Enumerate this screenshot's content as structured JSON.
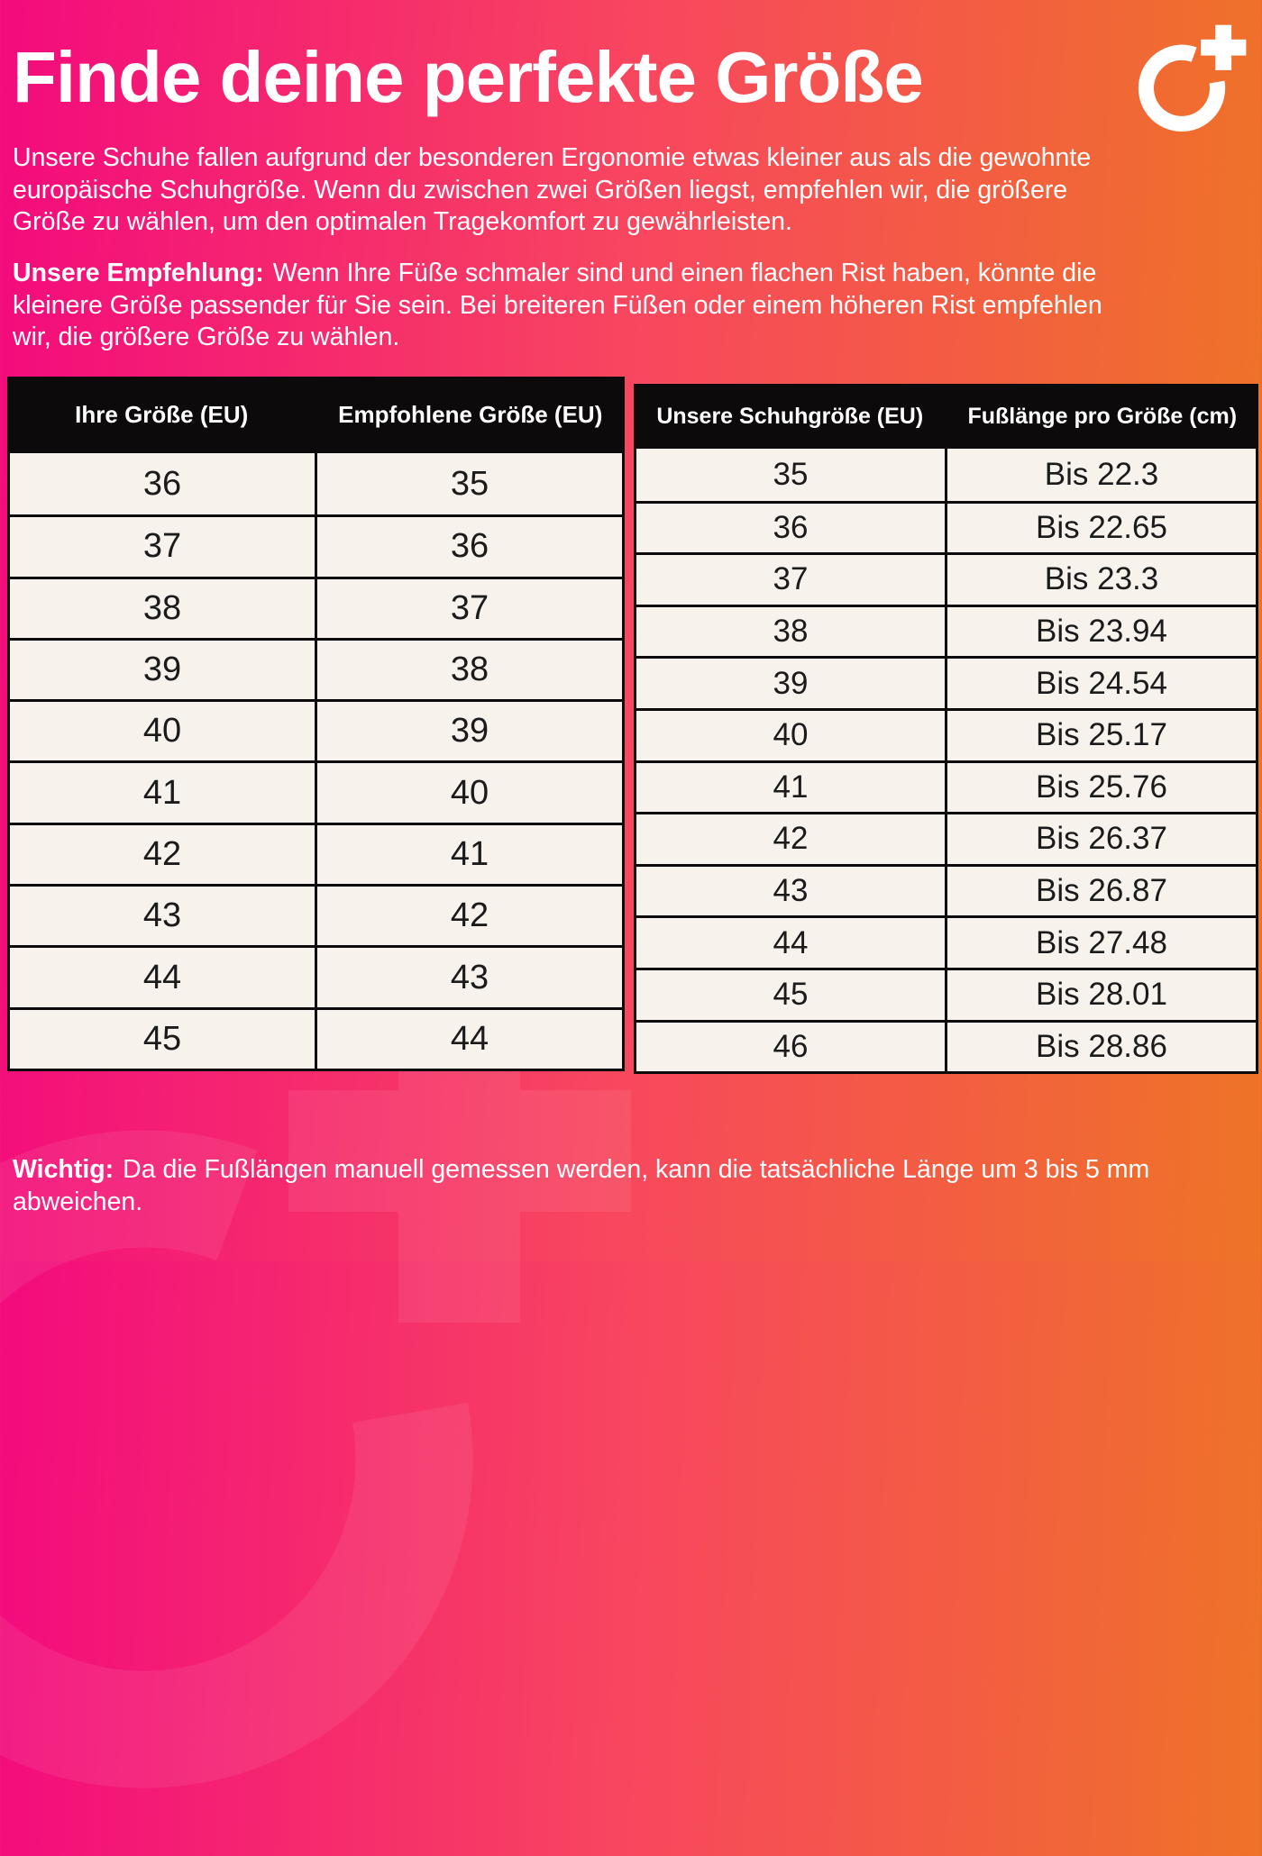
{
  "header": {
    "title": "Finde deine perfekte Größe"
  },
  "icons": {
    "logo": "circle-plus-logo-icon",
    "watermark": "circle-plus-watermark-icon"
  },
  "intro": {
    "lines": [
      "Unsere Schuhe fallen aufgrund der besonderen Ergonomie etwas kleiner aus als die gewohnte",
      "europäische Schuhgröße. Wenn du zwischen zwei Größen liegst, empfehlen wir, die größere",
      "Größe zu wählen, um den optimalen Tragekomfort zu gewährleisten."
    ]
  },
  "recommendation": {
    "label": "Unsere Empfehlung:",
    "lines": [
      "Wenn Ihre Füße schmaler sind und einen flachen Rist haben, könnte die",
      "kleinere Größe passender für Sie sein. Bei breiteren Füßen oder einem höheren Rist empfehlen",
      "wir, die größere Größe zu wählen."
    ]
  },
  "size_table": {
    "headers": [
      "Ihre Größe (EU)",
      "Empfohlene Größe (EU)"
    ],
    "rows": [
      [
        "36",
        "35"
      ],
      [
        "37",
        "36"
      ],
      [
        "38",
        "37"
      ],
      [
        "39",
        "38"
      ],
      [
        "40",
        "39"
      ],
      [
        "41",
        "40"
      ],
      [
        "42",
        "41"
      ],
      [
        "43",
        "42"
      ],
      [
        "44",
        "43"
      ],
      [
        "45",
        "44"
      ]
    ]
  },
  "foot_length_table": {
    "headers": [
      "Unsere Schuhgröße (EU)",
      "Fußlänge pro Größe (cm)"
    ],
    "rows": [
      [
        "35",
        "Bis 22.3"
      ],
      [
        "36",
        "Bis 22.65"
      ],
      [
        "37",
        "Bis 23.3"
      ],
      [
        "38",
        "Bis 23.94"
      ],
      [
        "39",
        "Bis 24.54"
      ],
      [
        "40",
        "Bis 25.17"
      ],
      [
        "41",
        "Bis 25.76"
      ],
      [
        "42",
        "Bis 26.37"
      ],
      [
        "43",
        "Bis 26.87"
      ],
      [
        "44",
        "Bis 27.48"
      ],
      [
        "45",
        "Bis 28.01"
      ],
      [
        "46",
        "Bis 28.86"
      ]
    ]
  },
  "note": {
    "label": "Wichtig:",
    "lines": [
      "Da die Fußlängen manuell gemessen werden, kann die tatsächliche Länge um 3 bis 5 mm",
      "abweichen."
    ]
  },
  "colors": {
    "gradient_left": "#f30b7d",
    "gradient_mid": "#f8465f",
    "gradient_right": "#ee7426",
    "table_header_bg": "#0c0a0b",
    "table_row_bg": "#f8f2ed",
    "table_border": "#0c0a0b",
    "table_text": "#1b1b1b",
    "text_on_gradient": "#ffffff"
  }
}
